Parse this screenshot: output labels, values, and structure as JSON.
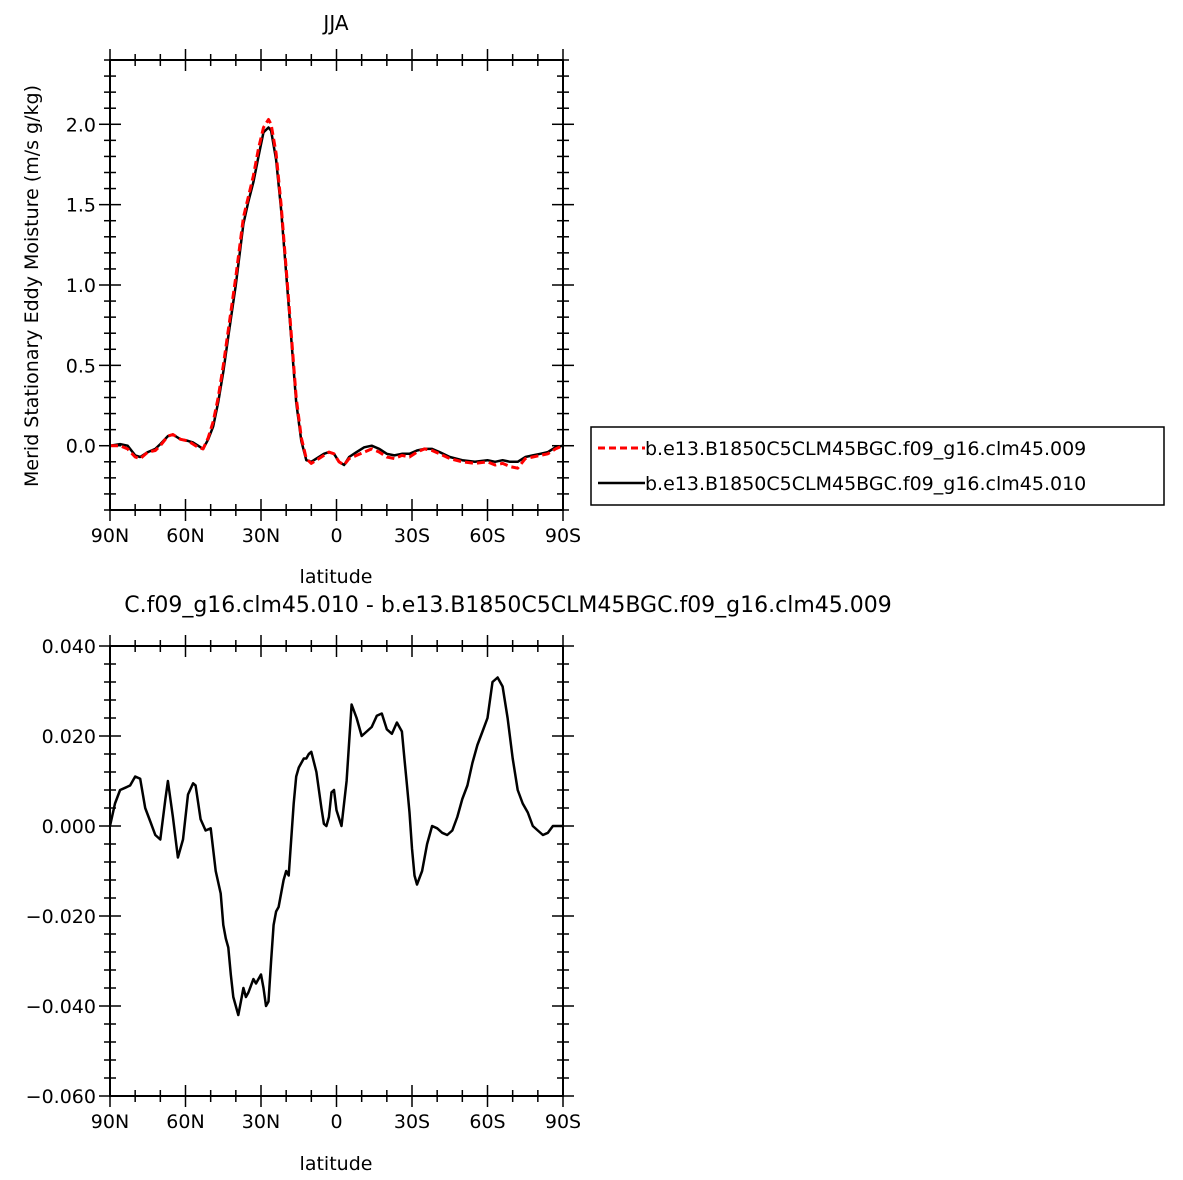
{
  "chart_data": [
    {
      "type": "line",
      "title": "JJA",
      "xlabel": "latitude",
      "ylabel": "Merid Stationary Eddy Moisture (m/s g/kg)",
      "xlim": [
        90,
        -90
      ],
      "ylim": [
        -0.4,
        2.4
      ],
      "x_ticks": [
        {
          "value": 90,
          "label": "90N"
        },
        {
          "value": 60,
          "label": "60N"
        },
        {
          "value": 30,
          "label": "30N"
        },
        {
          "value": 0,
          "label": "0"
        },
        {
          "value": -30,
          "label": "30S"
        },
        {
          "value": -60,
          "label": "60S"
        },
        {
          "value": -90,
          "label": "90S"
        }
      ],
      "y_ticks": [
        {
          "value": 0.0,
          "label": "0.0"
        },
        {
          "value": 0.5,
          "label": "0.5"
        },
        {
          "value": 1.0,
          "label": "1.0"
        },
        {
          "value": 1.5,
          "label": "1.5"
        },
        {
          "value": 2.0,
          "label": "2.0"
        }
      ],
      "legend_position": "right",
      "series": [
        {
          "name": "b.e13.B1850C5CLM45BGC.f09_g16.clm45.009",
          "color": "#ff0000",
          "dash": true,
          "x": [
            90,
            86,
            83,
            80,
            78,
            75,
            72,
            70,
            67,
            65,
            62,
            59,
            57,
            55,
            53,
            51,
            49,
            47,
            45,
            43,
            40,
            37,
            35,
            33,
            31,
            29,
            27,
            26,
            24,
            22,
            20,
            18,
            16,
            14,
            12,
            10,
            8,
            5,
            3,
            1,
            -1,
            -3,
            -5,
            -8,
            -11,
            -14,
            -17,
            -20,
            -23,
            -26,
            -29,
            -32,
            -35,
            -38,
            -41,
            -45,
            -50,
            -55,
            -60,
            -63,
            -66,
            -69,
            -72,
            -75,
            -78,
            -81,
            -84,
            -87,
            -90
          ],
          "y": [
            0.0,
            0.0,
            -0.02,
            -0.07,
            -0.08,
            -0.04,
            -0.03,
            0.0,
            0.06,
            0.07,
            0.04,
            0.03,
            0.01,
            -0.01,
            -0.02,
            0.05,
            0.15,
            0.3,
            0.5,
            0.72,
            1.05,
            1.42,
            1.55,
            1.68,
            1.85,
            1.98,
            2.03,
            2.0,
            1.82,
            1.5,
            1.1,
            0.7,
            0.3,
            0.05,
            -0.08,
            -0.11,
            -0.09,
            -0.06,
            -0.04,
            -0.05,
            -0.1,
            -0.12,
            -0.08,
            -0.06,
            -0.04,
            -0.02,
            -0.04,
            -0.07,
            -0.08,
            -0.06,
            -0.07,
            -0.04,
            -0.02,
            -0.03,
            -0.05,
            -0.08,
            -0.1,
            -0.11,
            -0.1,
            -0.12,
            -0.11,
            -0.13,
            -0.14,
            -0.08,
            -0.07,
            -0.06,
            -0.05,
            -0.02,
            0.0
          ]
        },
        {
          "name": "b.e13.B1850C5CLM45BGC.f09_g16.clm45.010",
          "color": "#000000",
          "dash": false,
          "x": [
            90,
            86,
            83,
            80,
            78,
            75,
            72,
            70,
            67,
            65,
            62,
            59,
            57,
            55,
            53,
            51,
            49,
            47,
            45,
            43,
            40,
            37,
            35,
            33,
            31,
            29,
            27,
            26,
            24,
            22,
            20,
            18,
            16,
            14,
            12,
            10,
            8,
            5,
            3,
            1,
            -1,
            -3,
            -5,
            -8,
            -11,
            -14,
            -17,
            -20,
            -23,
            -26,
            -29,
            -32,
            -35,
            -38,
            -41,
            -45,
            -50,
            -55,
            -60,
            -63,
            -66,
            -69,
            -72,
            -75,
            -78,
            -81,
            -84,
            -87,
            -90
          ],
          "y": [
            0.0,
            0.01,
            0.0,
            -0.06,
            -0.07,
            -0.04,
            -0.02,
            0.01,
            0.06,
            0.07,
            0.04,
            0.03,
            0.02,
            0.0,
            -0.02,
            0.04,
            0.12,
            0.27,
            0.46,
            0.68,
            1.0,
            1.38,
            1.52,
            1.64,
            1.8,
            1.95,
            1.98,
            1.96,
            1.78,
            1.47,
            1.07,
            0.67,
            0.27,
            0.03,
            -0.09,
            -0.1,
            -0.08,
            -0.05,
            -0.04,
            -0.05,
            -0.1,
            -0.12,
            -0.07,
            -0.04,
            -0.01,
            0.0,
            -0.02,
            -0.05,
            -0.06,
            -0.05,
            -0.05,
            -0.03,
            -0.02,
            -0.02,
            -0.04,
            -0.07,
            -0.09,
            -0.1,
            -0.09,
            -0.1,
            -0.09,
            -0.1,
            -0.1,
            -0.07,
            -0.06,
            -0.05,
            -0.04,
            -0.01,
            0.0
          ]
        }
      ]
    },
    {
      "type": "line",
      "title": "C.f09_g16.clm45.010 - b.e13.B1850C5CLM45BGC.f09_g16.clm45.009",
      "xlabel": "latitude",
      "ylabel": "",
      "xlim": [
        90,
        -90
      ],
      "ylim": [
        -0.06,
        0.04
      ],
      "x_ticks": [
        {
          "value": 90,
          "label": "90N"
        },
        {
          "value": 60,
          "label": "60N"
        },
        {
          "value": 30,
          "label": "30N"
        },
        {
          "value": 0,
          "label": "0"
        },
        {
          "value": -30,
          "label": "30S"
        },
        {
          "value": -60,
          "label": "60S"
        },
        {
          "value": -90,
          "label": "90S"
        }
      ],
      "y_ticks": [
        {
          "value": 0.04,
          "label": "0.040"
        },
        {
          "value": 0.02,
          "label": "0.020"
        },
        {
          "value": 0.0,
          "label": "0.000"
        },
        {
          "value": -0.02,
          "label": "−0.020"
        },
        {
          "value": -0.04,
          "label": "−0.040"
        },
        {
          "value": -0.06,
          "label": "−0.060"
        }
      ],
      "series": [
        {
          "color": "#000000",
          "x": [
            90,
            88,
            86,
            84,
            82,
            80,
            78,
            76,
            74,
            72,
            70,
            68,
            67,
            65,
            63,
            61,
            59,
            57,
            56,
            54,
            52,
            50,
            48,
            46,
            45,
            44,
            43,
            42,
            41,
            39,
            38,
            37,
            36,
            35,
            34,
            33,
            32,
            31,
            30,
            29,
            28,
            27,
            26,
            25,
            24,
            23,
            22,
            21,
            20,
            19,
            18,
            17,
            16,
            15,
            14,
            13,
            12,
            11,
            10,
            8,
            7,
            6,
            5,
            4,
            3,
            2,
            1,
            0,
            -2,
            -4,
            -6,
            -8,
            -10,
            -12,
            -14,
            -16,
            -18,
            -20,
            -22,
            -24,
            -26,
            -27,
            -28,
            -29,
            -30,
            -31,
            -32,
            -34,
            -36,
            -38,
            -40,
            -42,
            -44,
            -46,
            -48,
            -50,
            -52,
            -54,
            -56,
            -58,
            -60,
            -62,
            -64,
            -66,
            -68,
            -70,
            -72,
            -74,
            -76,
            -78,
            -80,
            -82,
            -84,
            -86,
            -88,
            -90
          ],
          "y": [
            0.0,
            0.005,
            0.008,
            0.0085,
            0.009,
            0.011,
            0.0105,
            0.004,
            0.001,
            -0.002,
            -0.003,
            0.006,
            0.01,
            0.002,
            -0.007,
            -0.003,
            0.007,
            0.0095,
            0.009,
            0.0015,
            -0.001,
            -0.0005,
            -0.01,
            -0.015,
            -0.022,
            -0.025,
            -0.027,
            -0.033,
            -0.038,
            -0.042,
            -0.039,
            -0.036,
            -0.038,
            -0.037,
            -0.0355,
            -0.034,
            -0.035,
            -0.034,
            -0.033,
            -0.036,
            -0.04,
            -0.039,
            -0.03,
            -0.022,
            -0.019,
            -0.018,
            -0.015,
            -0.012,
            -0.01,
            -0.011,
            -0.003,
            0.005,
            0.011,
            0.013,
            0.014,
            0.015,
            0.015,
            0.016,
            0.0165,
            0.012,
            0.008,
            0.004,
            0.0005,
            0.0,
            0.002,
            0.0075,
            0.008,
            0.0035,
            0.0,
            0.01,
            0.027,
            0.024,
            0.02,
            0.021,
            0.022,
            0.0245,
            0.025,
            0.0215,
            0.0205,
            0.023,
            0.021,
            0.015,
            0.009,
            0.003,
            -0.005,
            -0.011,
            -0.013,
            -0.01,
            -0.004,
            0.0,
            -0.0005,
            -0.0015,
            -0.002,
            -0.001,
            0.002,
            0.006,
            0.009,
            0.014,
            0.018,
            0.021,
            0.024,
            0.032,
            0.033,
            0.031,
            0.024,
            0.015,
            0.008,
            0.005,
            0.003,
            0.0,
            -0.001,
            -0.002,
            -0.0015,
            0.0,
            0.0,
            0.0
          ]
        }
      ]
    }
  ]
}
